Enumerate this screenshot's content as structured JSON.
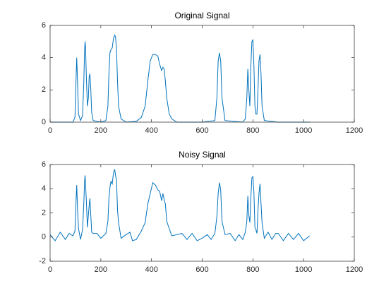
{
  "chart_data": [
    {
      "type": "line",
      "title": "Original Signal",
      "color": "#0072bd",
      "x": [
        0,
        90,
        98,
        102,
        105,
        108,
        112,
        120,
        128,
        133,
        136,
        138,
        140,
        143,
        147,
        151,
        154,
        157,
        160,
        164,
        170,
        200,
        220,
        228,
        232,
        236,
        240,
        245,
        250,
        255,
        258,
        262,
        266,
        270,
        280,
        300,
        340,
        360,
        375,
        385,
        395,
        405,
        415,
        425,
        432,
        440,
        445,
        450,
        455,
        460,
        470,
        480,
        500,
        600,
        650,
        658,
        663,
        668,
        673,
        678,
        690,
        760,
        770,
        776,
        780,
        784,
        788,
        792,
        796,
        800,
        804,
        808,
        812,
        816,
        820,
        824,
        828,
        832,
        836,
        845,
        900,
        1024
      ],
      "values": [
        0,
        0,
        0.3,
        2.5,
        4.0,
        2.6,
        0.5,
        0.1,
        0.4,
        2.5,
        4.5,
        5.0,
        4.6,
        2.8,
        1.0,
        1.5,
        2.8,
        3.0,
        2.2,
        0.6,
        0.1,
        0,
        0.1,
        1.0,
        3.0,
        4.3,
        4.5,
        4.6,
        5.2,
        5.4,
        5.3,
        4.5,
        2.5,
        1.0,
        0.2,
        0,
        0.05,
        0.3,
        1.0,
        2.5,
        3.8,
        4.2,
        4.2,
        4.1,
        3.6,
        3.2,
        3.4,
        3.3,
        2.5,
        1.5,
        0.5,
        0.2,
        0,
        0,
        0.1,
        1.5,
        3.8,
        4.3,
        3.8,
        1.5,
        0.1,
        0,
        0.2,
        1.5,
        3.3,
        2.0,
        1.0,
        3.5,
        5.0,
        5.1,
        3.5,
        1.0,
        0.5,
        0.5,
        2.0,
        3.8,
        4.2,
        3.0,
        1.0,
        0.1,
        0,
        0
      ],
      "xlim": [
        0,
        1200
      ],
      "xticks": [
        0,
        200,
        400,
        600,
        800,
        1000,
        1200
      ],
      "ylim": [
        0,
        6
      ],
      "yticks": [
        0,
        2,
        4,
        6
      ]
    },
    {
      "type": "line",
      "title": "Noisy Signal",
      "color": "#0072bd",
      "x": [
        0,
        20,
        40,
        60,
        75,
        90,
        98,
        102,
        105,
        108,
        112,
        120,
        128,
        133,
        136,
        138,
        140,
        143,
        147,
        151,
        154,
        157,
        160,
        164,
        170,
        185,
        200,
        220,
        228,
        232,
        236,
        240,
        245,
        250,
        255,
        258,
        262,
        266,
        270,
        280,
        300,
        315,
        325,
        340,
        360,
        375,
        385,
        395,
        405,
        415,
        425,
        432,
        440,
        445,
        450,
        455,
        460,
        470,
        480,
        500,
        520,
        540,
        560,
        580,
        600,
        620,
        635,
        650,
        658,
        663,
        668,
        673,
        678,
        690,
        710,
        730,
        745,
        760,
        770,
        776,
        780,
        784,
        788,
        792,
        796,
        800,
        804,
        808,
        812,
        816,
        820,
        824,
        828,
        832,
        836,
        845,
        860,
        875,
        890,
        900,
        920,
        940,
        960,
        980,
        1000,
        1024
      ],
      "values": [
        0.2,
        -0.3,
        0.4,
        -0.2,
        0.3,
        0.1,
        0.5,
        2.8,
        4.3,
        2.4,
        0.7,
        -0.2,
        0.6,
        2.8,
        4.6,
        5.1,
        4.3,
        3.0,
        0.8,
        1.8,
        2.6,
        3.2,
        2.0,
        0.4,
        0.3,
        0.3,
        -0.1,
        0.3,
        1.3,
        3.2,
        4.1,
        4.6,
        4.4,
        5.3,
        5.6,
        5.1,
        4.7,
        2.2,
        1.2,
        -0.1,
        0.2,
        0.4,
        -0.3,
        -0.2,
        0.5,
        1.2,
        2.7,
        3.6,
        4.5,
        4.3,
        3.9,
        3.8,
        3.0,
        3.6,
        3.1,
        2.7,
        1.3,
        0.7,
        0.1,
        0.2,
        0.3,
        -0.2,
        0.3,
        -0.3,
        -0.1,
        0.2,
        -0.2,
        0.3,
        1.7,
        3.6,
        4.5,
        3.9,
        1.3,
        0.2,
        0.3,
        -0.3,
        0.2,
        -0.2,
        0.4,
        1.3,
        3.4,
        1.8,
        1.2,
        3.3,
        4.9,
        5.0,
        3.7,
        0.8,
        0.6,
        0.3,
        2.2,
        3.6,
        4.4,
        2.8,
        1.2,
        -0.1,
        0.4,
        -0.2,
        0.3,
        0.3,
        -0.3,
        0.3,
        -0.2,
        0.3,
        -0.3,
        0.1
      ],
      "xlim": [
        0,
        1200
      ],
      "xticks": [
        0,
        200,
        400,
        600,
        800,
        1000,
        1200
      ],
      "ylim": [
        -2,
        6
      ],
      "yticks": [
        -2,
        0,
        2,
        4,
        6
      ]
    }
  ]
}
